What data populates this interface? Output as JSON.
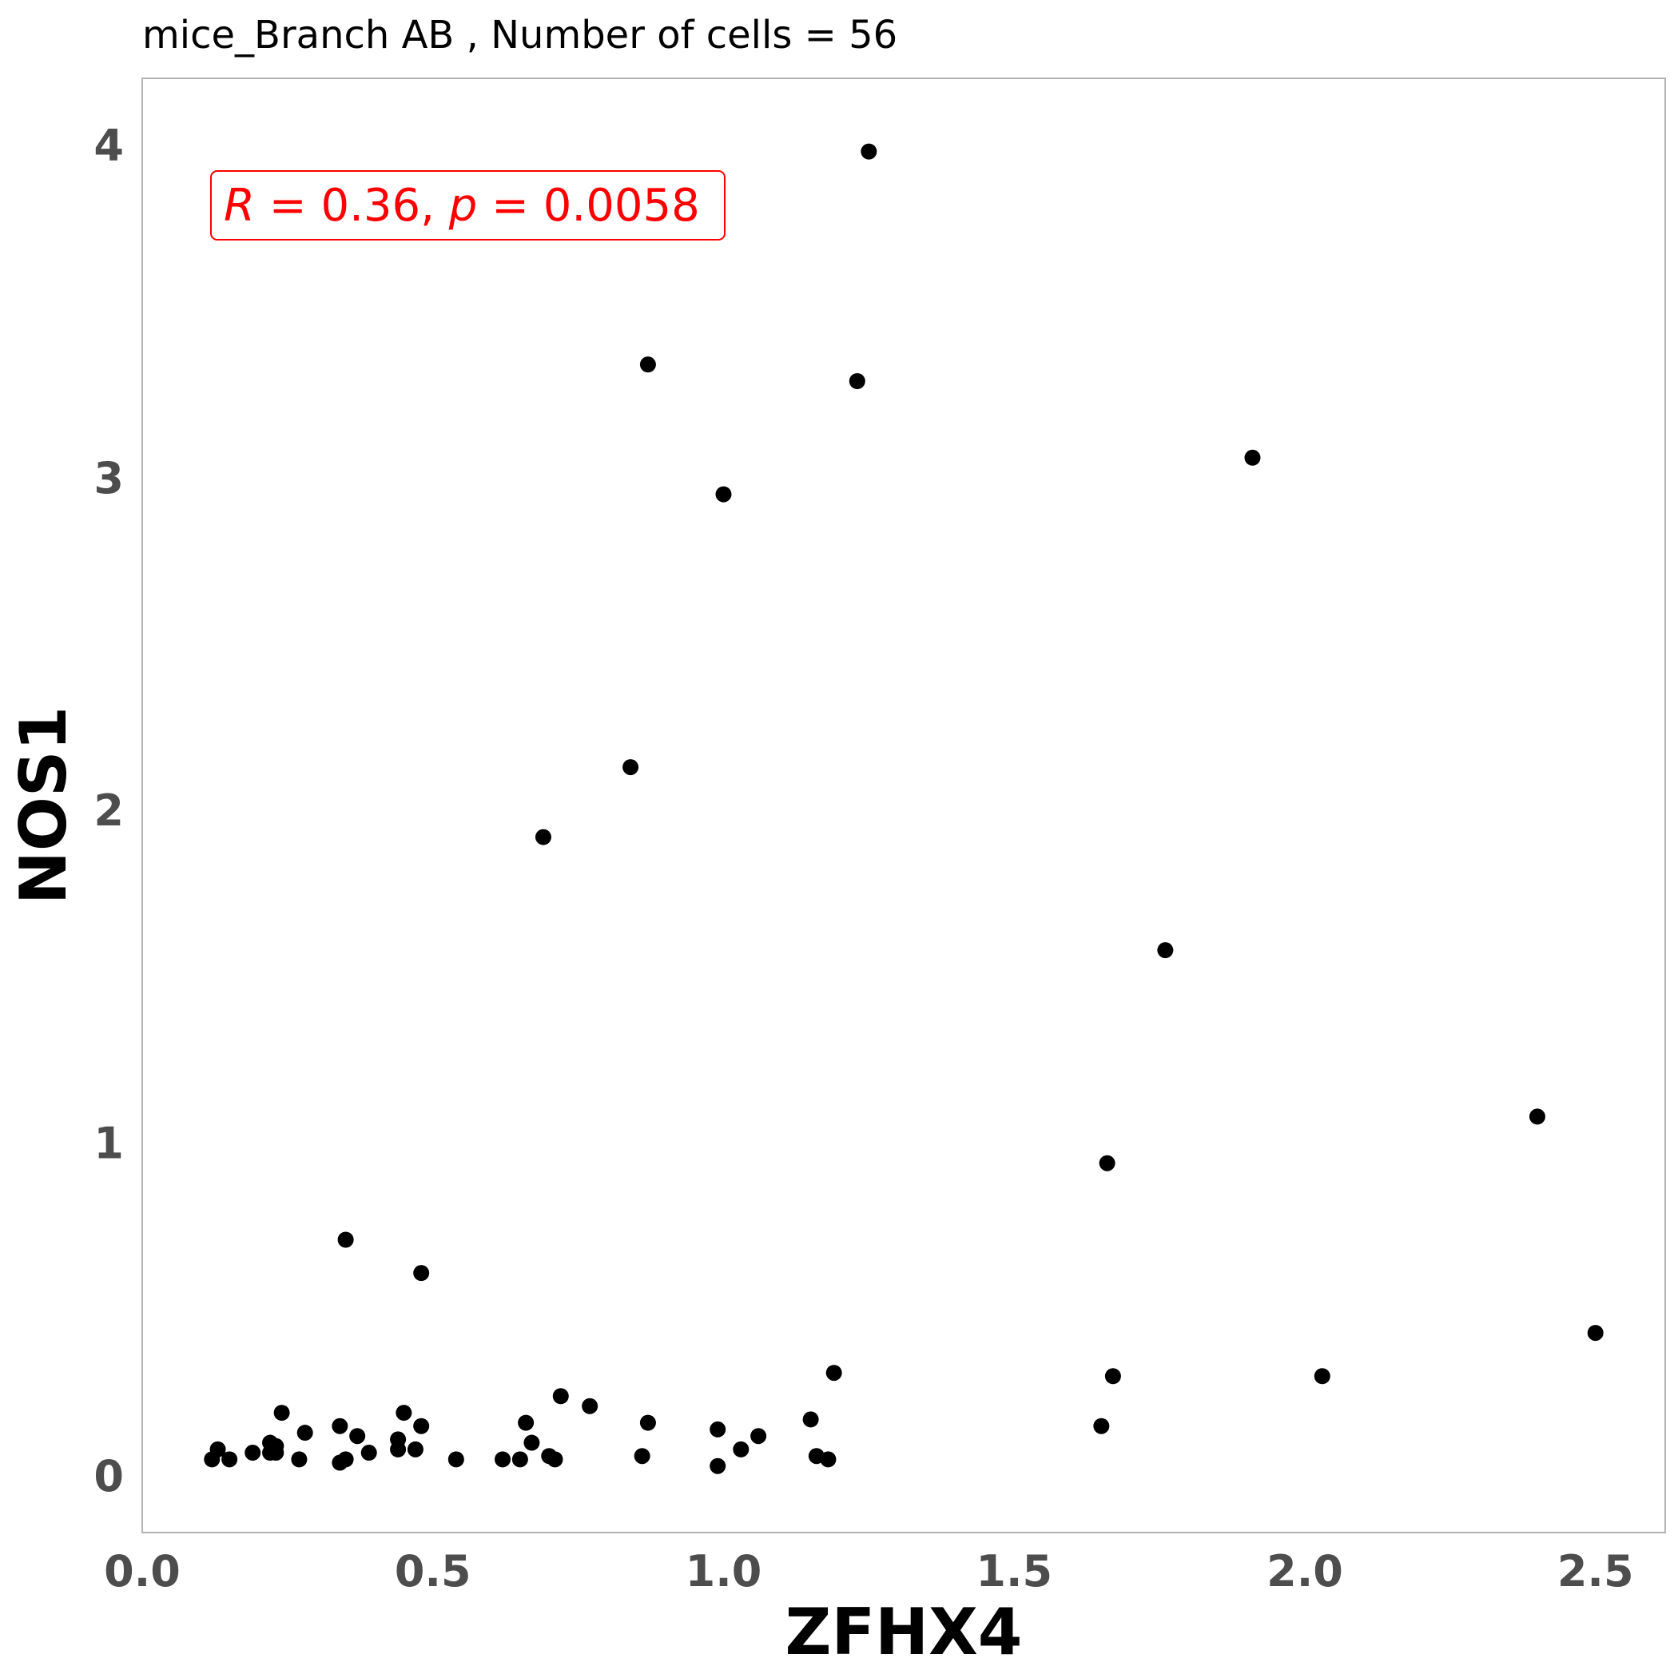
{
  "chart_data": {
    "type": "scatter",
    "title": "mice_Branch AB , Number of cells =  56",
    "xlabel": "ZFHX4",
    "ylabel": "NOS1",
    "xlim": [
      0.0,
      2.62
    ],
    "ylim": [
      -0.17,
      4.2
    ],
    "xticks": [
      0.0,
      0.5,
      1.0,
      1.5,
      2.0,
      2.5
    ],
    "xtick_labels": [
      "0.0",
      "0.5",
      "1.0",
      "1.5",
      "2.0",
      "2.5"
    ],
    "yticks": [
      0,
      1,
      2,
      3,
      4
    ],
    "ytick_labels": [
      "0",
      "1",
      "2",
      "3",
      "4"
    ],
    "grid": false,
    "annotation": {
      "r_symbol": "R",
      "r_text": " = 0.36, ",
      "p_symbol": "p",
      "p_text": " = 0.0058",
      "color": "#ff0000"
    },
    "point_color": "#000000",
    "frame_color": "#b3b3b3",
    "series": [
      {
        "x": [
          0.12,
          0.13,
          0.15,
          0.19,
          0.22,
          0.23,
          0.23,
          0.24,
          0.27,
          0.28,
          0.34,
          0.34,
          0.35,
          0.35,
          0.37,
          0.39,
          0.44,
          0.44,
          0.45,
          0.47,
          0.48,
          0.48,
          0.54,
          0.62,
          0.65,
          0.66,
          0.67,
          0.69,
          0.7,
          0.71,
          0.72,
          0.77,
          0.84,
          0.86,
          0.87,
          0.87,
          0.99,
          0.99,
          1.0,
          1.03,
          1.06,
          1.15,
          1.16,
          1.18,
          1.19,
          1.23,
          1.25,
          1.65,
          1.66,
          1.67,
          1.76,
          1.91,
          2.03,
          2.4,
          2.5,
          0.22
        ],
        "y": [
          0.05,
          0.08,
          0.05,
          0.07,
          0.1,
          0.07,
          0.09,
          0.19,
          0.05,
          0.13,
          0.15,
          0.04,
          0.71,
          0.05,
          0.12,
          0.07,
          0.11,
          0.08,
          0.19,
          0.08,
          0.61,
          0.15,
          0.05,
          0.05,
          0.05,
          0.16,
          0.1,
          1.92,
          0.06,
          0.05,
          0.24,
          0.21,
          2.13,
          0.06,
          3.34,
          0.16,
          0.14,
          0.03,
          2.95,
          0.08,
          0.12,
          0.17,
          0.06,
          0.05,
          0.31,
          3.29,
          3.98,
          0.15,
          0.94,
          0.3,
          1.58,
          3.06,
          0.3,
          1.08,
          0.43,
          0.07
        ]
      }
    ]
  }
}
